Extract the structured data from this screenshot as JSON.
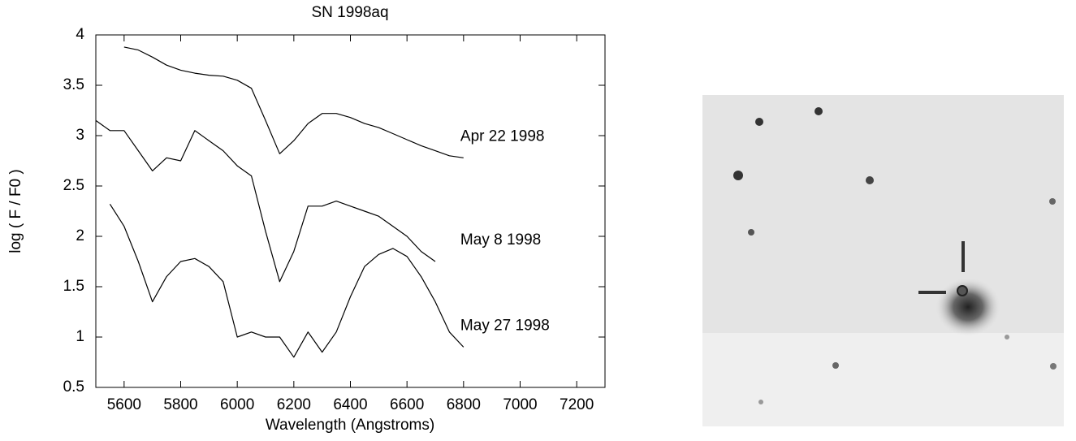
{
  "chart_data": {
    "type": "line",
    "title": "SN 1998aq",
    "x_label": "Wavelength (Angstroms)",
    "y_label": "log ( F / F0 )",
    "x": [
      5500,
      5550,
      5600,
      5650,
      5700,
      5750,
      5800,
      5850,
      5900,
      5950,
      6000,
      6050,
      6100,
      6150,
      6200,
      6250,
      6300,
      6350,
      6400,
      6450,
      6500,
      6550,
      6600,
      6650,
      6700,
      6750,
      6800
    ],
    "series": [
      {
        "name": "Apr 22 1998",
        "color": "#000000",
        "values": [
          null,
          null,
          3.88,
          3.85,
          3.78,
          3.7,
          3.65,
          3.62,
          3.6,
          3.59,
          3.55,
          3.47,
          3.15,
          2.82,
          2.95,
          3.12,
          3.22,
          3.22,
          3.18,
          3.12,
          3.08,
          3.02,
          2.96,
          2.9,
          2.85,
          2.8,
          2.78
        ]
      },
      {
        "name": "May 8 1998",
        "color": "#000000",
        "values": [
          3.15,
          3.05,
          3.05,
          2.85,
          2.65,
          2.78,
          2.75,
          3.05,
          2.95,
          2.85,
          2.7,
          2.6,
          2.05,
          1.55,
          1.85,
          2.3,
          2.3,
          2.35,
          2.3,
          2.25,
          2.2,
          2.1,
          2.0,
          1.85,
          1.75,
          null,
          null
        ]
      },
      {
        "name": "May 27 1998",
        "color": "#000000",
        "values": [
          null,
          2.32,
          2.1,
          1.75,
          1.35,
          1.6,
          1.75,
          1.78,
          1.7,
          1.55,
          1.0,
          1.05,
          1.0,
          1.0,
          0.8,
          1.05,
          0.85,
          1.05,
          1.4,
          1.7,
          1.82,
          1.88,
          1.8,
          1.6,
          1.35,
          1.05,
          0.9
        ]
      }
    ],
    "xlim": [
      5500,
      7300
    ],
    "xticks": [
      5600,
      5800,
      6000,
      6200,
      6400,
      6600,
      6800,
      7000,
      7200
    ],
    "ylim": [
      0.5,
      4
    ],
    "yticks": [
      0.5,
      1,
      1.5,
      2,
      2.5,
      3,
      3.5,
      4
    ],
    "grid": false
  }
}
